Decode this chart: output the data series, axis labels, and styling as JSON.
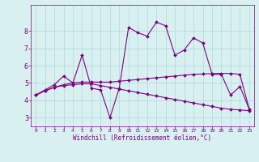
{
  "line1_x": [
    0,
    1,
    2,
    3,
    4,
    5,
    6,
    7,
    8,
    9,
    10,
    11,
    12,
    13,
    14,
    15,
    16,
    17,
    18,
    19,
    20,
    21,
    22,
    23
  ],
  "line1_y": [
    4.3,
    4.6,
    4.9,
    5.4,
    5.0,
    6.6,
    4.7,
    4.6,
    3.0,
    4.7,
    8.2,
    7.9,
    7.7,
    8.5,
    8.3,
    6.6,
    6.9,
    7.6,
    7.3,
    5.5,
    5.5,
    4.3,
    4.8,
    3.5
  ],
  "line2_x": [
    0,
    1,
    2,
    3,
    4,
    5,
    6,
    7,
    8,
    9,
    10,
    11,
    12,
    13,
    14,
    15,
    16,
    17,
    18,
    19,
    20,
    21,
    22,
    23
  ],
  "line2_y": [
    4.3,
    4.55,
    4.75,
    4.9,
    5.0,
    5.05,
    5.05,
    5.05,
    5.05,
    5.1,
    5.15,
    5.2,
    5.25,
    5.3,
    5.35,
    5.4,
    5.45,
    5.5,
    5.52,
    5.54,
    5.55,
    5.55,
    5.5,
    3.5
  ],
  "line3_x": [
    0,
    1,
    2,
    3,
    4,
    5,
    6,
    7,
    8,
    9,
    10,
    11,
    12,
    13,
    14,
    15,
    16,
    17,
    18,
    19,
    20,
    21,
    22,
    23
  ],
  "line3_y": [
    4.3,
    4.55,
    4.75,
    4.85,
    4.9,
    4.95,
    4.95,
    4.85,
    4.75,
    4.65,
    4.55,
    4.45,
    4.35,
    4.25,
    4.15,
    4.05,
    3.95,
    3.85,
    3.75,
    3.65,
    3.55,
    3.48,
    3.45,
    3.4
  ],
  "line_color": "#800080",
  "bg_color": "#d8f0f0",
  "grid_color": "#b0d8d8",
  "xlabel": "Windchill (Refroidissement éolien,°C)",
  "ylim": [
    2.5,
    9.5
  ],
  "xlim": [
    -0.5,
    23.5
  ],
  "yticks": [
    3,
    4,
    5,
    6,
    7,
    8
  ],
  "xticks": [
    0,
    1,
    2,
    3,
    4,
    5,
    6,
    7,
    8,
    9,
    10,
    11,
    12,
    13,
    14,
    15,
    16,
    17,
    18,
    19,
    20,
    21,
    22,
    23
  ],
  "xlabel_fontsize": 5.5,
  "xtick_fontsize": 4.5,
  "ytick_fontsize": 6.0,
  "linewidth": 0.8,
  "markersize": 2.0
}
